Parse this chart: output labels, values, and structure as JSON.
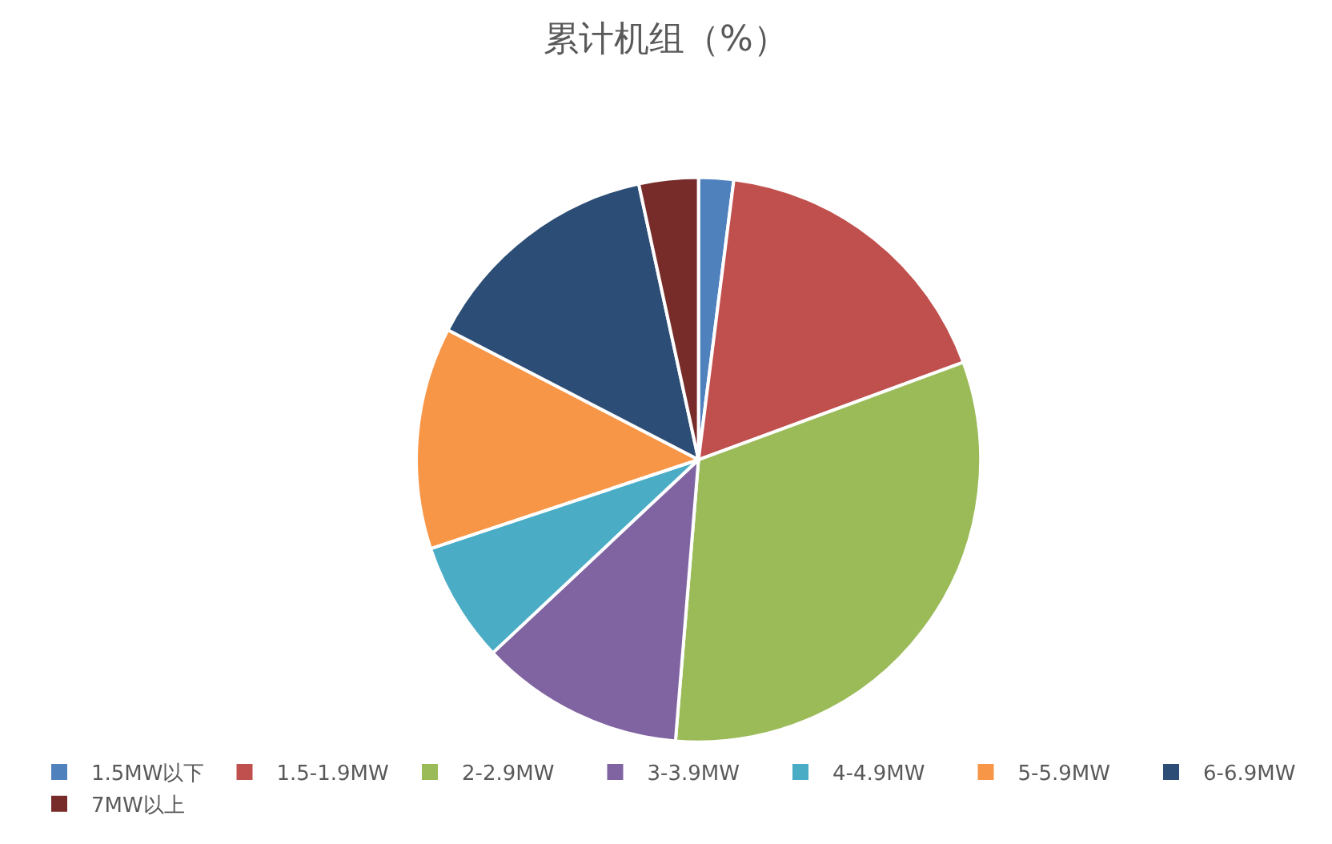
{
  "chart_data": {
    "type": "pie",
    "title": "累计机组（%）",
    "categories": [
      "1.5MW以下",
      "1.5-1.9MW",
      "2-2.9MW",
      "3-3.9MW",
      "4-4.9MW",
      "5-5.9MW",
      "6-6.9MW",
      "7MW以上"
    ],
    "values": [
      2.0,
      17.4,
      31.9,
      11.7,
      6.9,
      12.7,
      14.0,
      3.4
    ],
    "colors": [
      "#4f81bd",
      "#c0504d",
      "#9bbb59",
      "#8064a2",
      "#4bacc6",
      "#f79646",
      "#2c4d75",
      "#772c2a"
    ],
    "legend": "bottom"
  }
}
